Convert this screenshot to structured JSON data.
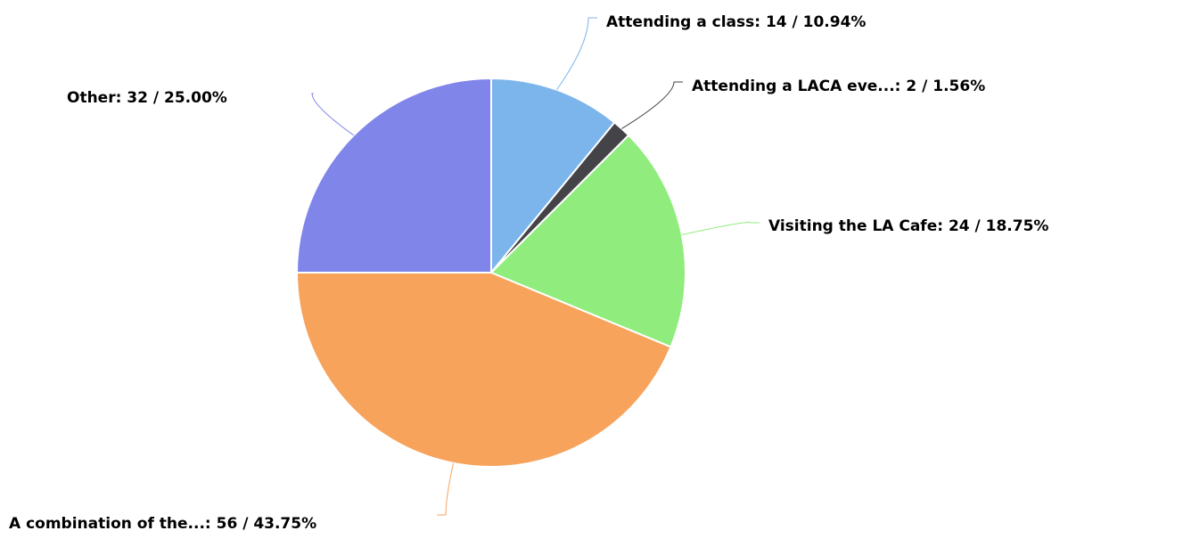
{
  "chart_data": {
    "type": "pie",
    "values": [
      14,
      2,
      24,
      56,
      32
    ],
    "value_labels": [
      "Attending a class: 14 / 10.94%",
      "Attending a LACA eve...: 2 / 1.56%",
      "Visiting the LA Cafe: 24 / 18.75%",
      "A combination of the...: 56 / 43.75%",
      "Other: 32 / 25.00%"
    ],
    "colors": [
      "#7cb5ec",
      "#434348",
      "#90ed7d",
      "#f7a35c",
      "#8085e9"
    ]
  }
}
